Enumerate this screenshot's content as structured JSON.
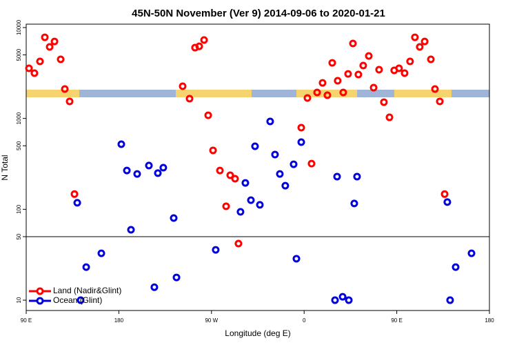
{
  "chart_data": {
    "type": "scatter",
    "title": "45N-50N November (Ver 9)   2014-09-06 to 2020-01-21",
    "x_label": "Longitude (deg E)",
    "y_label": "N Total",
    "log_y": true,
    "hline": 50,
    "legend": "bottom-left",
    "xlim": [
      -270,
      180
    ],
    "xticks": [
      {
        "value": -270,
        "label": "90 E"
      },
      {
        "value": -180,
        "label": "180"
      },
      {
        "value": -90,
        "label": "90 W"
      },
      0,
      {
        "value": 90,
        "label": "90 E"
      },
      {
        "value": 180,
        "label": "180"
      }
    ],
    "ylim": [
      7.7,
      10900
    ],
    "yticks": [
      10,
      50,
      100,
      500,
      1000,
      5000,
      10000
    ],
    "series": [
      {
        "name": "Land (Nadir&Glint)",
        "color": "#ff0000",
        "x": [
          -267.3,
          -262,
          -256.6,
          -251.9,
          -247.2,
          -242.5,
          -236.5,
          -232.5,
          -227.8,
          -223.1,
          -118,
          -111.3,
          -106,
          -101.9,
          -97.2,
          -93.2,
          -88.5,
          -81.8,
          -75.8,
          -71.8,
          -67.1,
          -63.8,
          -2.8,
          3.2,
          7.2,
          12.6,
          17.9,
          22.6,
          27.3,
          32.6,
          38,
          42.7,
          47.4,
          52.7,
          57.4,
          62.8,
          67.5,
          72.8,
          77.5,
          82.9,
          87.5,
          92.2,
          97.6,
          102.9,
          107.6,
          112.3,
          117.1,
          123.1,
          127.1,
          131.8,
          136.5
        ],
        "values": [
          3560,
          3150,
          4240,
          7810,
          6120,
          7030,
          4470,
          2105,
          1540,
          147,
          2260,
          1650,
          6010,
          6220,
          7290,
          1083,
          445,
          267,
          108,
          237,
          217,
          42,
          791,
          1680,
          318,
          1930,
          2460,
          1800,
          4090,
          2600,
          1930,
          3090,
          6680,
          3040,
          3820,
          4870,
          2180,
          3440,
          1510,
          1028,
          3380,
          3560,
          3150,
          4240,
          7810,
          6120,
          7030,
          4470,
          2105,
          1540,
          147
        ]
      },
      {
        "name": "Ocean (Glint)",
        "color": "#0000dd",
        "x": [
          -220.4,
          -211.7,
          -197,
          -217.1,
          -177.6,
          -172.2,
          -168.2,
          -162.2,
          -150.8,
          -142.1,
          -136.8,
          -145.5,
          -126.7,
          -124,
          -85.9,
          -61.8,
          -57.1,
          -51.7,
          -47.7,
          -43,
          -33,
          -28.3,
          -23.6,
          -18.3,
          -10.2,
          -7.5,
          -2.8,
          30,
          32,
          37.4,
          43.4,
          48.7,
          51.4,
          139.1,
          147.2,
          162.6,
          141.8
        ],
        "values": [
          118,
          23.1,
          32.8,
          10,
          520,
          267,
          59.5,
          245,
          303,
          250,
          287,
          13.9,
          80.1,
          17.8,
          35.8,
          93.8,
          195,
          126,
          494,
          112,
          926,
          400,
          245,
          182,
          313,
          28.6,
          548,
          10,
          229,
          10.9,
          10,
          116,
          229,
          120,
          23.1,
          32.8,
          10
        ]
      }
    ]
  }
}
